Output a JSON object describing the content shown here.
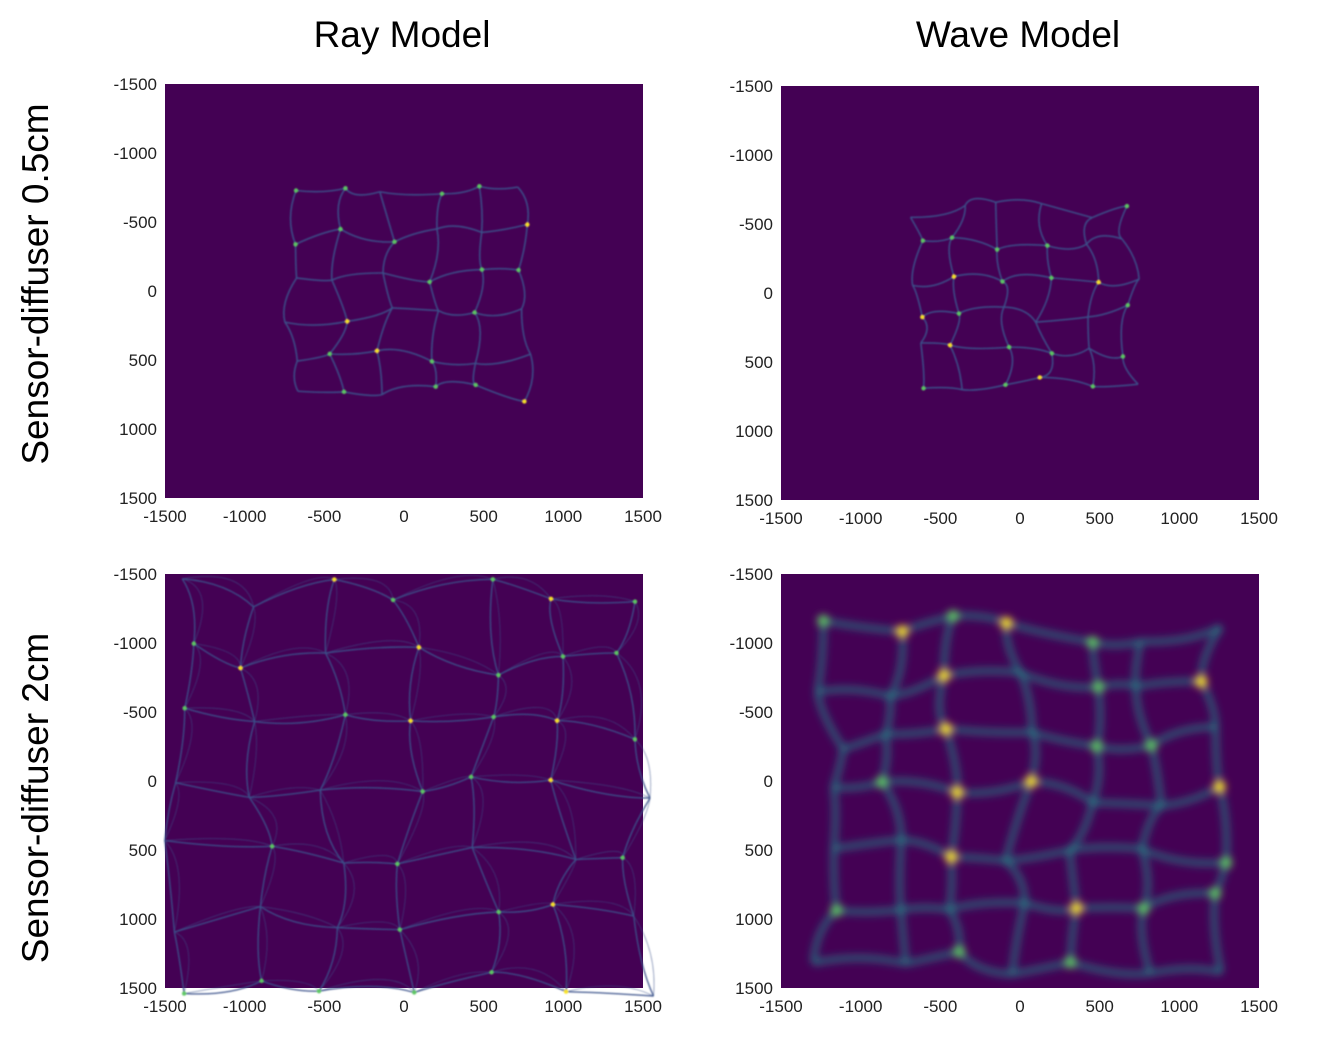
{
  "column_titles": [
    "Ray Model",
    "Wave Model"
  ],
  "row_titles": [
    "Sensor-diffuser 0.5cm",
    "Sensor-diffuser 2cm"
  ],
  "colors": {
    "background": "#440154",
    "low": "#3b528b",
    "mid": "#21918c",
    "high": "#5ec962",
    "peak": "#fde725"
  },
  "chart_data": [
    {
      "type": "heatmap",
      "panel": "ray-0.5cm",
      "colormap": "viridis",
      "xlim": [
        -1500,
        1500
      ],
      "ylim": [
        1500,
        -1500
      ],
      "xticks": [
        "-1500",
        "-1000",
        "-500",
        "0",
        "500",
        "1000",
        "1500"
      ],
      "yticks": [
        "-1500",
        "-1000",
        "-500",
        "0",
        "500",
        "1000",
        "1500"
      ],
      "extent": {
        "x": [
          -700,
          750
        ],
        "y": [
          -700,
          750
        ]
      }
    },
    {
      "type": "heatmap",
      "panel": "wave-0.5cm",
      "colormap": "viridis",
      "xlim": [
        -1500,
        1500
      ],
      "ylim": [
        1500,
        -1500
      ],
      "xticks": [
        "-1500",
        "-1000",
        "-500",
        "0",
        "500",
        "1000",
        "1500"
      ],
      "yticks": [
        "-1500",
        "-1000",
        "-500",
        "0",
        "500",
        "1000",
        "1500"
      ],
      "extent": {
        "x": [
          -650,
          700
        ],
        "y": [
          -600,
          650
        ]
      }
    },
    {
      "type": "heatmap",
      "panel": "ray-2cm",
      "colormap": "viridis",
      "xlim": [
        -1500,
        1500
      ],
      "ylim": [
        1500,
        -1500
      ],
      "xticks": [
        "-1500",
        "-1000",
        "-500",
        "0",
        "500",
        "1000",
        "1500"
      ],
      "yticks": [
        "-1500",
        "-1000",
        "-500",
        "0",
        "500",
        "1000",
        "1500"
      ],
      "extent": {
        "x": [
          -1400,
          1450
        ],
        "y": [
          -1350,
          1450
        ]
      }
    },
    {
      "type": "heatmap",
      "panel": "wave-2cm",
      "colormap": "viridis",
      "xlim": [
        -1500,
        1500
      ],
      "ylim": [
        1500,
        -1500
      ],
      "xticks": [
        "-1500",
        "-1000",
        "-500",
        "0",
        "500",
        "1000",
        "1500"
      ],
      "yticks": [
        "-1500",
        "-1000",
        "-500",
        "0",
        "500",
        "1000",
        "1500"
      ],
      "extent": {
        "x": [
          -1200,
          1200
        ],
        "y": [
          -1100,
          1300
        ]
      }
    }
  ]
}
